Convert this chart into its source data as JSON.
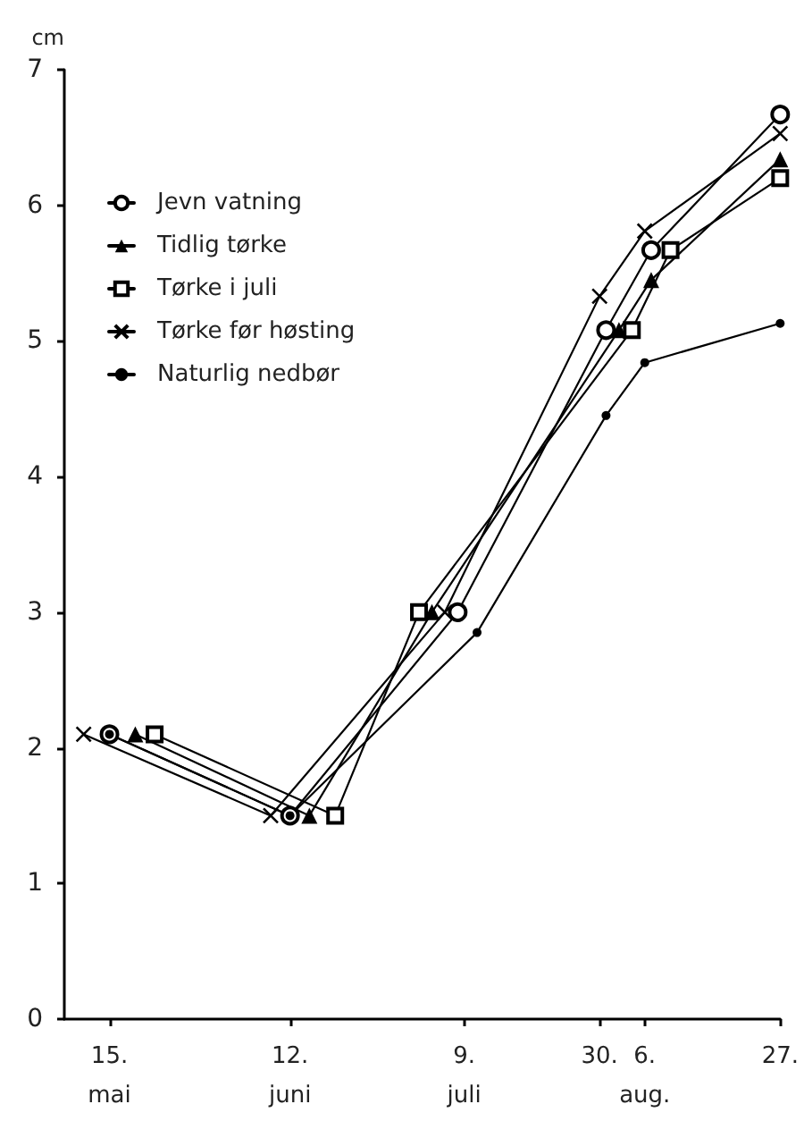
{
  "chart_data": {
    "type": "line",
    "ylabel": "cm",
    "xlim": [
      "--05-08",
      "--08-27"
    ],
    "xticks": [
      {
        "value": "--05-15",
        "label": "15.\nmai"
      },
      {
        "value": "--06-12",
        "label": "12.\njuni"
      },
      {
        "value": "--07-09",
        "label": "9.\njuli"
      },
      {
        "value": "--07-30",
        "label": "30."
      },
      {
        "value": "--08-06",
        "label": "6.\naug."
      },
      {
        "value": "--08-27",
        "label": "27."
      }
    ],
    "ylim": [
      0,
      7
    ],
    "yticks": [
      0,
      1,
      2,
      3,
      4,
      5,
      6,
      7
    ],
    "grid": false,
    "legend": "top left",
    "line_style": "solid",
    "series": [
      {
        "name": "Jevn vatning",
        "color": "#000000",
        "marker": "circle",
        "x": [
          "--05-15",
          "--06-12",
          "--07-08",
          "--07-31",
          "--08-07",
          "--08-27"
        ],
        "values": [
          2.1,
          1.5,
          3.0,
          5.08,
          5.67,
          6.67
        ]
      },
      {
        "name": "Tidlig tørke",
        "color": "#000000",
        "marker": "triangle",
        "x": [
          "--05-19",
          "--06-15",
          "--07-04",
          "--08-02",
          "--08-07",
          "--08-27"
        ],
        "values": [
          2.1,
          1.5,
          3.0,
          5.08,
          5.45,
          6.34
        ]
      },
      {
        "name": "Tørke i juli",
        "color": "#000000",
        "marker": "square",
        "x": [
          "--05-22",
          "--06-19",
          "--07-02",
          "--08-04",
          "--08-10",
          "--08-27"
        ],
        "values": [
          2.1,
          1.5,
          3.0,
          5.08,
          5.67,
          6.2
        ]
      },
      {
        "name": "Tørke før høsting",
        "color": "#000000",
        "marker": "cross",
        "x": [
          "--05-11",
          "--06-09",
          "--07-06",
          "--07-30",
          "--08-06",
          "--08-27"
        ],
        "values": [
          2.1,
          1.5,
          3.0,
          5.33,
          5.81,
          6.53
        ]
      },
      {
        "name": "Naturlig nedbør",
        "color": "#000000",
        "marker": "dot",
        "x": [
          "--05-15",
          "--06-12",
          "--07-11",
          "--07-31",
          "--08-06",
          "--08-27"
        ],
        "values": [
          2.1,
          1.5,
          2.85,
          4.45,
          4.84,
          5.13
        ]
      }
    ]
  }
}
